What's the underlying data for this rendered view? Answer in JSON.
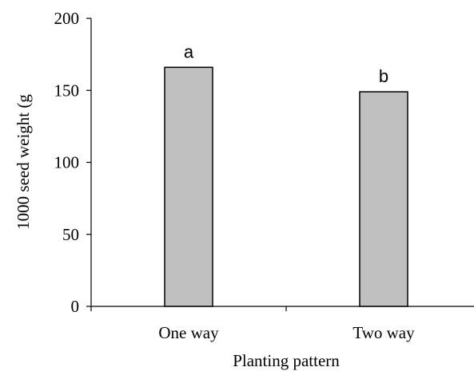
{
  "chart_data": {
    "type": "bar",
    "categories": [
      "One way",
      "Two way"
    ],
    "values": [
      166,
      149
    ],
    "bar_labels": [
      "a",
      "b"
    ],
    "ylabel": "1000 seed weight (g",
    "xlabel": "Planting pattern",
    "ylim": [
      0,
      200
    ],
    "yticks": [
      0,
      50,
      100,
      150,
      200
    ],
    "grid": false,
    "legend": "none",
    "bar_color": "#c0c0c0",
    "bar_edge_color": "#000000"
  }
}
